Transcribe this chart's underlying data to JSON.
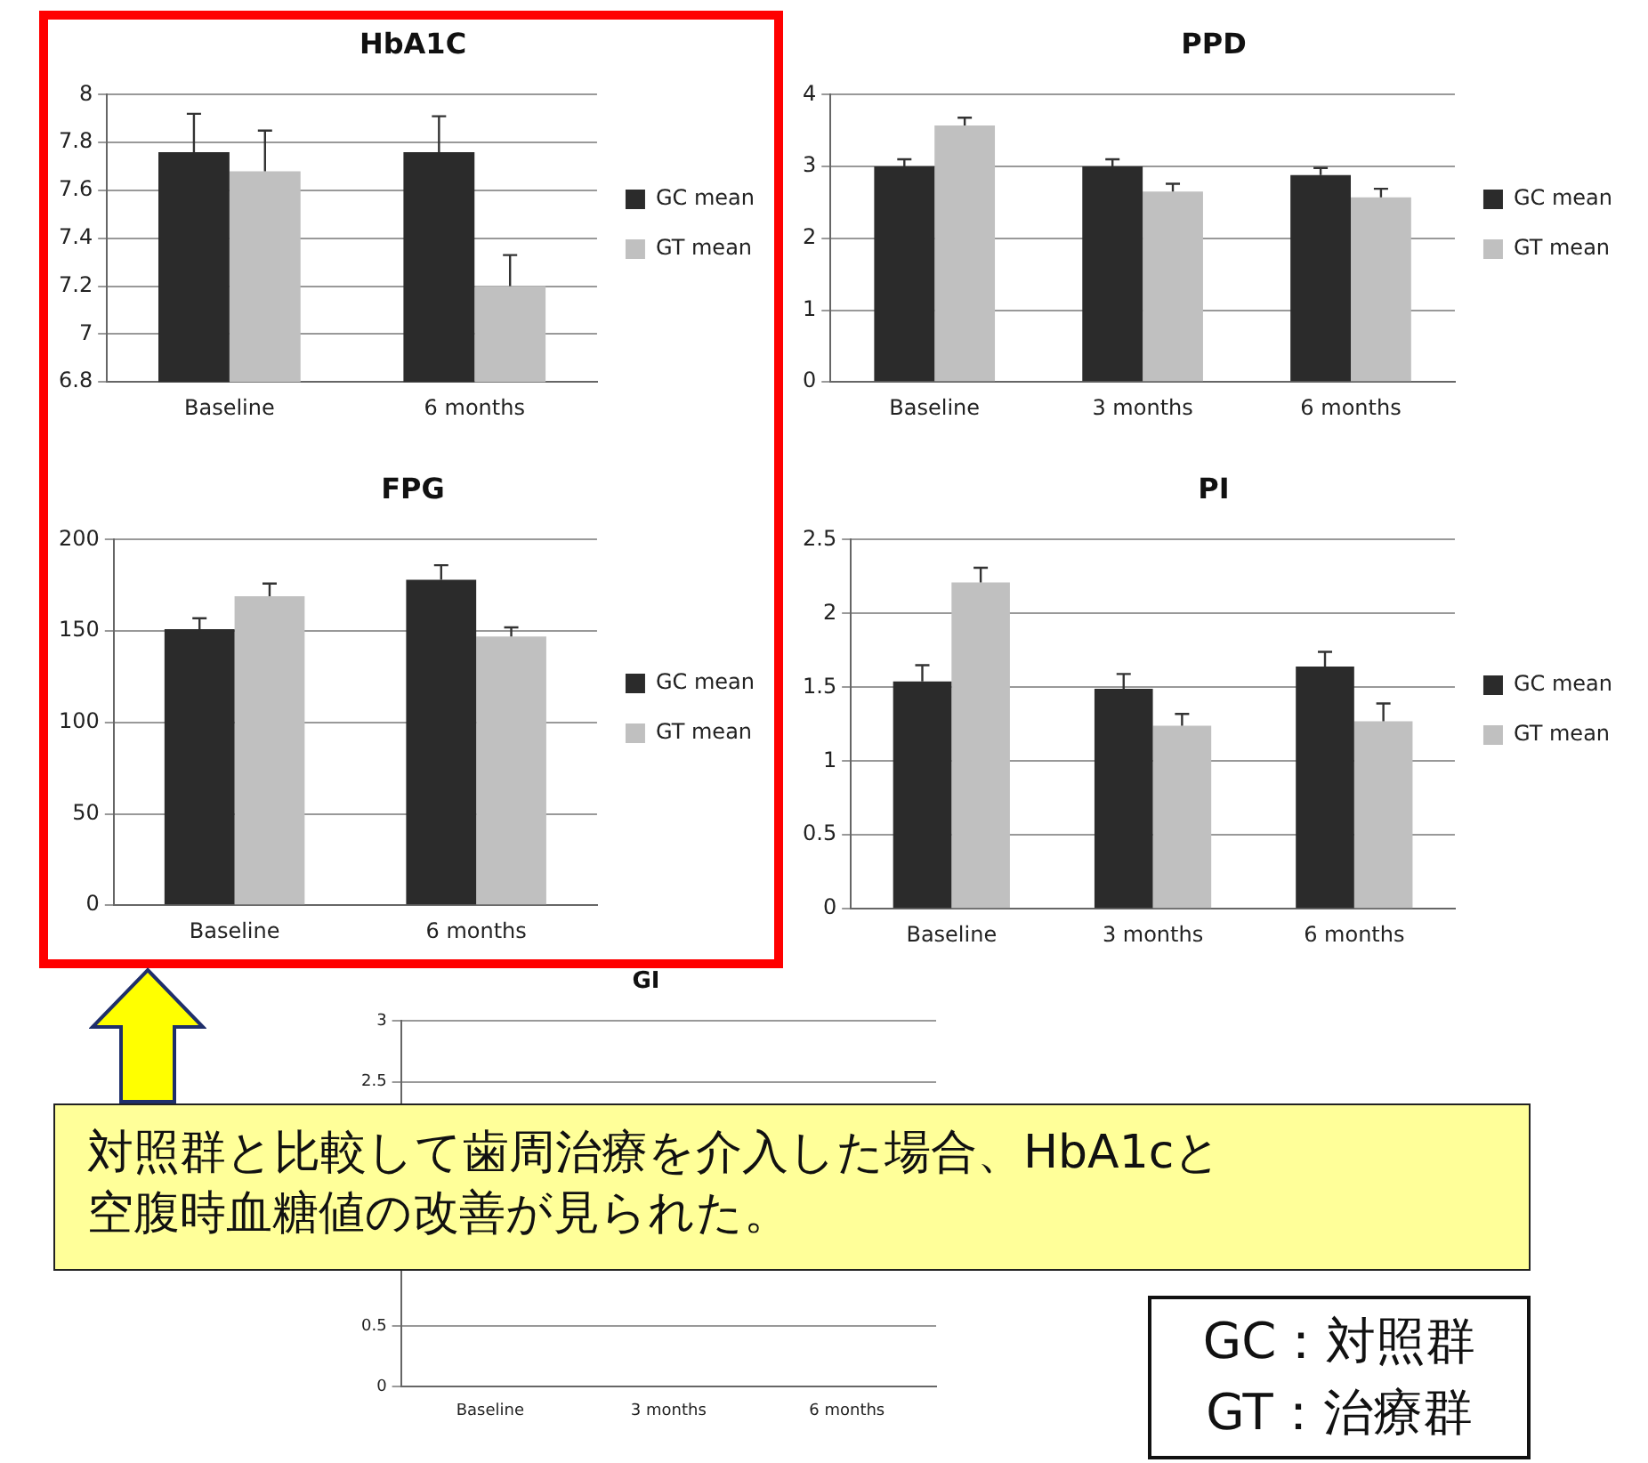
{
  "chart_data": [
    {
      "type": "bar",
      "title": "HbA1C",
      "categories": [
        "Baseline",
        "6 months"
      ],
      "ylim": [
        6.8,
        8
      ],
      "yticks": [
        6.8,
        7,
        7.2,
        7.4,
        7.6,
        7.8,
        8
      ],
      "grid": "y",
      "legend": "right",
      "series": [
        {
          "name": "GC mean",
          "color": "#2b2b2b",
          "values": [
            7.76,
            7.76
          ],
          "errors": [
            [
              7.76,
              7.92
            ],
            [
              7.76,
              7.91
            ]
          ]
        },
        {
          "name": "GT mean",
          "color": "#c0c0c0",
          "values": [
            7.68,
            7.2
          ],
          "errors": [
            [
              7.68,
              7.85
            ],
            [
              7.2,
              7.33
            ]
          ]
        }
      ]
    },
    {
      "type": "bar",
      "title": "PPD",
      "categories": [
        "Baseline",
        "3 months",
        "6 months"
      ],
      "ylim": [
        0,
        4
      ],
      "yticks": [
        0,
        1,
        2,
        3,
        4
      ],
      "grid": "y",
      "legend": "right",
      "series": [
        {
          "name": "GC mean",
          "color": "#2b2b2b",
          "values": [
            3.0,
            3.0,
            2.88
          ],
          "errors": [
            [
              3.0,
              3.1
            ],
            [
              3.0,
              3.1
            ],
            [
              2.88,
              2.98
            ]
          ]
        },
        {
          "name": "GT mean",
          "color": "#c0c0c0",
          "values": [
            3.57,
            2.65,
            2.57
          ],
          "errors": [
            [
              3.57,
              3.68
            ],
            [
              2.65,
              2.76
            ],
            [
              2.57,
              2.69
            ]
          ]
        }
      ]
    },
    {
      "type": "bar",
      "title": "FPG",
      "categories": [
        "Baseline",
        "6 months"
      ],
      "ylim": [
        0,
        200
      ],
      "yticks": [
        0,
        50,
        100,
        150,
        200
      ],
      "grid": "y",
      "legend": "right",
      "series": [
        {
          "name": "GC mean",
          "color": "#2b2b2b",
          "values": [
            151,
            178
          ],
          "errors": [
            [
              151,
              157
            ],
            [
              178,
              186
            ]
          ]
        },
        {
          "name": "GT mean",
          "color": "#c0c0c0",
          "values": [
            169,
            147
          ],
          "errors": [
            [
              169,
              176
            ],
            [
              147,
              152
            ]
          ]
        }
      ]
    },
    {
      "type": "bar",
      "title": "PI",
      "categories": [
        "Baseline",
        "3 months",
        "6 months"
      ],
      "ylim": [
        0,
        2.5
      ],
      "yticks": [
        0,
        0.5,
        1,
        1.5,
        2,
        2.5
      ],
      "grid": "y",
      "legend": "right",
      "series": [
        {
          "name": "GC mean",
          "color": "#2b2b2b",
          "values": [
            1.54,
            1.49,
            1.64
          ],
          "errors": [
            [
              1.54,
              1.65
            ],
            [
              1.49,
              1.59
            ],
            [
              1.64,
              1.74
            ]
          ]
        },
        {
          "name": "GT mean",
          "color": "#c0c0c0",
          "values": [
            2.21,
            1.24,
            1.27
          ],
          "errors": [
            [
              2.21,
              2.31
            ],
            [
              1.24,
              1.32
            ],
            [
              1.27,
              1.39
            ]
          ]
        }
      ]
    },
    {
      "type": "bar",
      "title": "GI",
      "categories": [
        "Baseline",
        "3 months",
        "6 months"
      ],
      "ylim": [
        0,
        3
      ],
      "yticks": [
        0,
        0.5,
        2.5,
        3
      ],
      "grid": "y",
      "series": [
        {
          "color": "#2b2b2b",
          "values": [
            null,
            null,
            null
          ]
        },
        {
          "color": "#c0c0c0",
          "values": [
            null,
            null,
            null
          ]
        }
      ]
    },
    {
      "type": "other",
      "annotations": [
        "対照群と比較して歯周治療を介入した場合、HbA1cと",
        "空腹時血糖値の改善が見られた。",
        "GC：対照群",
        "GT：治療群"
      ]
    }
  ]
}
